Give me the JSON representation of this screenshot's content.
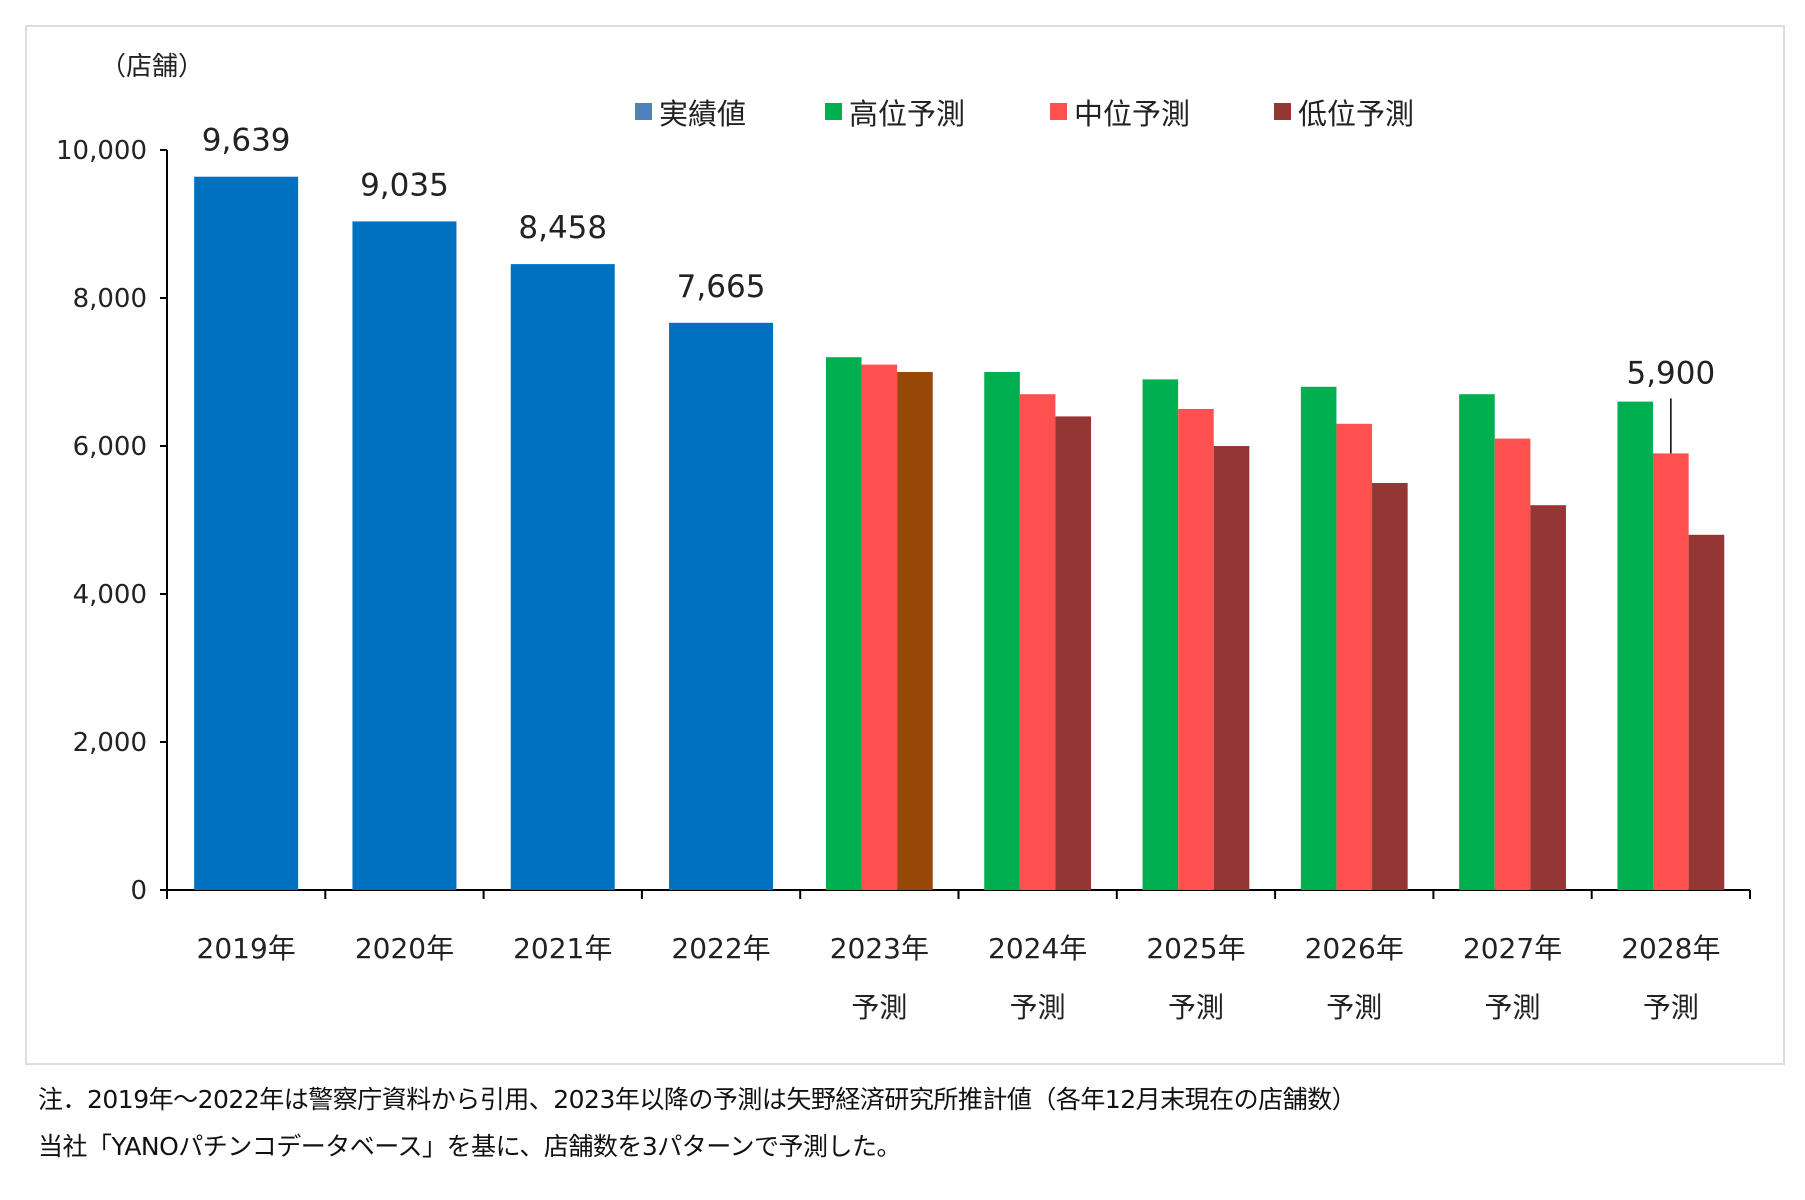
{
  "chart_data": {
    "type": "bar",
    "unit_label": "（店舗）",
    "ylim": [
      0,
      10000
    ],
    "yticks": [
      "0",
      "2,000",
      "4,000",
      "6,000",
      "8,000",
      "10,000"
    ],
    "ytick_values": [
      0,
      2000,
      4000,
      6000,
      8000,
      10000
    ],
    "grid": false,
    "legend_position": "top",
    "categories": [
      {
        "year": "2019年",
        "sub": ""
      },
      {
        "year": "2020年",
        "sub": ""
      },
      {
        "year": "2021年",
        "sub": ""
      },
      {
        "year": "2022年",
        "sub": ""
      },
      {
        "year": "2023年",
        "sub": "予測"
      },
      {
        "year": "2024年",
        "sub": "予測"
      },
      {
        "year": "2025年",
        "sub": "予測"
      },
      {
        "year": "2026年",
        "sub": "予測"
      },
      {
        "year": "2027年",
        "sub": "予測"
      },
      {
        "year": "2028年",
        "sub": "予測"
      }
    ],
    "series": [
      {
        "name": "実績値",
        "color": "#0070C0",
        "values": [
          9639,
          9035,
          8458,
          7665,
          null,
          null,
          null,
          null,
          null,
          null
        ],
        "labels": [
          "9,639",
          "9,035",
          "8,458",
          "7,665",
          null,
          null,
          null,
          null,
          null,
          null
        ]
      },
      {
        "name": "高位予測",
        "color": "#00B050",
        "values": [
          null,
          null,
          null,
          null,
          7200,
          7000,
          6900,
          6800,
          6700,
          6600
        ]
      },
      {
        "name": "中位予測",
        "color": "#FF5050",
        "values": [
          null,
          null,
          null,
          null,
          7100,
          6700,
          6500,
          6300,
          6100,
          5900
        ],
        "labels": [
          null,
          null,
          null,
          null,
          null,
          null,
          null,
          null,
          null,
          "5,900"
        ]
      },
      {
        "name": "低位予測",
        "color": "#943634",
        "values": [
          null,
          null,
          null,
          null,
          7000,
          6400,
          6000,
          5500,
          5200,
          4800
        ],
        "point_colors": [
          null,
          null,
          null,
          null,
          "#974706",
          null,
          null,
          null,
          null,
          null
        ]
      }
    ]
  },
  "notes": {
    "line1": "注．2019年～2022年は警察庁資料から引用、2023年以降の予測は矢野経済研究所推計値（各年12月末現在の店舗数）",
    "line2": "当社「YANOパチンコデータベース」を基に、店舗数を3パターンで予測した。"
  }
}
